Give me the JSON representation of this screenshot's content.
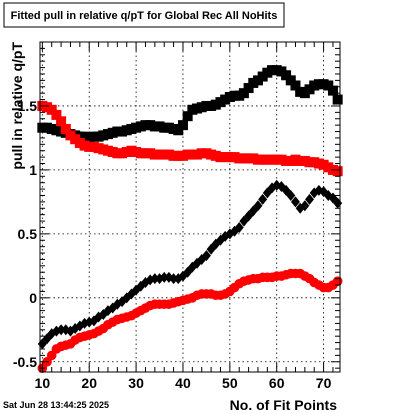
{
  "chart_data": {
    "type": "scatter",
    "title": "Fitted pull in relative q/pT for Global Rec All NoHits",
    "xlabel": "No. of Fit Points",
    "ylabel": "pull in relative q/pT",
    "xlim": [
      9.5,
      73.5
    ],
    "ylim": [
      -0.58,
      2.0
    ],
    "x_ticks": [
      10,
      20,
      30,
      40,
      50,
      60,
      70
    ],
    "y_ticks": [
      -0.5,
      0,
      0.5,
      1,
      1.5
    ],
    "y_tick_labels": [
      "-0.5",
      "0",
      "0.5",
      "1",
      "1.5"
    ],
    "grid": true,
    "footer": "Sat Jun 28 13:44:25 2025",
    "series": [
      {
        "marker": "square",
        "color": "#000000",
        "x": [
          10,
          11,
          12,
          13,
          14,
          15,
          16,
          17,
          18,
          19,
          20,
          21,
          22,
          23,
          24,
          25,
          26,
          27,
          28,
          29,
          30,
          31,
          32,
          33,
          34,
          35,
          36,
          37,
          38,
          39,
          40,
          41,
          42,
          43,
          44,
          45,
          46,
          47,
          48,
          49,
          50,
          51,
          52,
          53,
          54,
          55,
          56,
          57,
          58,
          59,
          60,
          61,
          62,
          63,
          64,
          65,
          66,
          67,
          68,
          69,
          70,
          71,
          72,
          73
        ],
        "values": [
          1.33,
          1.33,
          1.32,
          1.31,
          1.3,
          1.29,
          1.28,
          1.27,
          1.26,
          1.26,
          1.25,
          1.26,
          1.26,
          1.27,
          1.28,
          1.29,
          1.3,
          1.3,
          1.31,
          1.32,
          1.33,
          1.34,
          1.35,
          1.35,
          1.34,
          1.34,
          1.33,
          1.33,
          1.32,
          1.31,
          1.35,
          1.42,
          1.47,
          1.48,
          1.49,
          1.5,
          1.5,
          1.51,
          1.53,
          1.55,
          1.57,
          1.58,
          1.58,
          1.6,
          1.64,
          1.68,
          1.7,
          1.73,
          1.76,
          1.78,
          1.78,
          1.77,
          1.74,
          1.7,
          1.66,
          1.61,
          1.6,
          1.63,
          1.66,
          1.67,
          1.67,
          1.66,
          1.62,
          1.55
        ]
      },
      {
        "marker": "square",
        "color": "#ff0000",
        "x": [
          10,
          11,
          12,
          13,
          14,
          15,
          16,
          17,
          18,
          19,
          20,
          21,
          22,
          23,
          24,
          25,
          26,
          27,
          28,
          29,
          30,
          31,
          32,
          33,
          34,
          35,
          36,
          37,
          38,
          39,
          40,
          41,
          42,
          43,
          44,
          45,
          46,
          47,
          48,
          49,
          50,
          51,
          52,
          53,
          54,
          55,
          56,
          57,
          58,
          59,
          60,
          61,
          62,
          63,
          64,
          65,
          66,
          67,
          68,
          69,
          70,
          71,
          72,
          73
        ],
        "values": [
          1.5,
          1.49,
          1.47,
          1.43,
          1.38,
          1.32,
          1.27,
          1.24,
          1.21,
          1.19,
          1.18,
          1.18,
          1.17,
          1.16,
          1.15,
          1.14,
          1.13,
          1.13,
          1.14,
          1.15,
          1.14,
          1.13,
          1.13,
          1.13,
          1.12,
          1.12,
          1.12,
          1.12,
          1.11,
          1.11,
          1.11,
          1.12,
          1.12,
          1.12,
          1.13,
          1.13,
          1.12,
          1.11,
          1.1,
          1.1,
          1.1,
          1.1,
          1.09,
          1.09,
          1.09,
          1.09,
          1.08,
          1.08,
          1.08,
          1.08,
          1.08,
          1.08,
          1.07,
          1.07,
          1.08,
          1.07,
          1.07,
          1.06,
          1.06,
          1.05,
          1.04,
          1.02,
          1.0,
          0.99
        ]
      },
      {
        "marker": "diamond",
        "color": "#000000",
        "x": [
          10,
          11,
          12,
          13,
          14,
          15,
          16,
          17,
          18,
          19,
          20,
          21,
          22,
          23,
          24,
          25,
          26,
          27,
          28,
          29,
          30,
          31,
          32,
          33,
          34,
          35,
          36,
          37,
          38,
          39,
          40,
          41,
          42,
          43,
          44,
          45,
          46,
          47,
          48,
          49,
          50,
          51,
          52,
          53,
          54,
          55,
          56,
          57,
          58,
          59,
          60,
          61,
          62,
          63,
          64,
          65,
          66,
          67,
          68,
          69,
          70,
          71,
          72,
          73
        ],
        "values": [
          -0.36,
          -0.32,
          -0.28,
          -0.26,
          -0.25,
          -0.25,
          -0.26,
          -0.24,
          -0.22,
          -0.2,
          -0.19,
          -0.18,
          -0.15,
          -0.13,
          -0.1,
          -0.08,
          -0.05,
          -0.03,
          0.0,
          0.03,
          0.06,
          0.09,
          0.12,
          0.14,
          0.15,
          0.15,
          0.16,
          0.16,
          0.15,
          0.15,
          0.17,
          0.2,
          0.24,
          0.27,
          0.3,
          0.33,
          0.38,
          0.42,
          0.45,
          0.48,
          0.5,
          0.52,
          0.55,
          0.6,
          0.64,
          0.68,
          0.72,
          0.77,
          0.82,
          0.86,
          0.88,
          0.87,
          0.84,
          0.8,
          0.75,
          0.7,
          0.72,
          0.77,
          0.82,
          0.84,
          0.83,
          0.8,
          0.78,
          0.74
        ]
      },
      {
        "marker": "circle",
        "color": "#ff0000",
        "x": [
          10,
          11,
          12,
          13,
          14,
          15,
          16,
          17,
          18,
          19,
          20,
          21,
          22,
          23,
          24,
          25,
          26,
          27,
          28,
          29,
          30,
          31,
          32,
          33,
          34,
          35,
          36,
          37,
          38,
          39,
          40,
          41,
          42,
          43,
          44,
          45,
          46,
          47,
          48,
          49,
          50,
          51,
          52,
          53,
          54,
          55,
          56,
          57,
          58,
          59,
          60,
          61,
          62,
          63,
          64,
          65,
          66,
          67,
          68,
          69,
          70,
          71,
          72,
          73
        ],
        "values": [
          -0.55,
          -0.5,
          -0.45,
          -0.4,
          -0.38,
          -0.37,
          -0.36,
          -0.33,
          -0.31,
          -0.3,
          -0.29,
          -0.28,
          -0.26,
          -0.24,
          -0.21,
          -0.19,
          -0.17,
          -0.16,
          -0.15,
          -0.14,
          -0.12,
          -0.1,
          -0.08,
          -0.06,
          -0.05,
          -0.05,
          -0.05,
          -0.05,
          -0.04,
          -0.03,
          -0.02,
          -0.01,
          0.0,
          0.02,
          0.03,
          0.03,
          0.03,
          0.02,
          0.02,
          0.03,
          0.05,
          0.08,
          0.11,
          0.13,
          0.14,
          0.15,
          0.15,
          0.16,
          0.16,
          0.16,
          0.17,
          0.17,
          0.18,
          0.19,
          0.19,
          0.19,
          0.17,
          0.15,
          0.12,
          0.1,
          0.08,
          0.08,
          0.1,
          0.13
        ]
      }
    ]
  }
}
